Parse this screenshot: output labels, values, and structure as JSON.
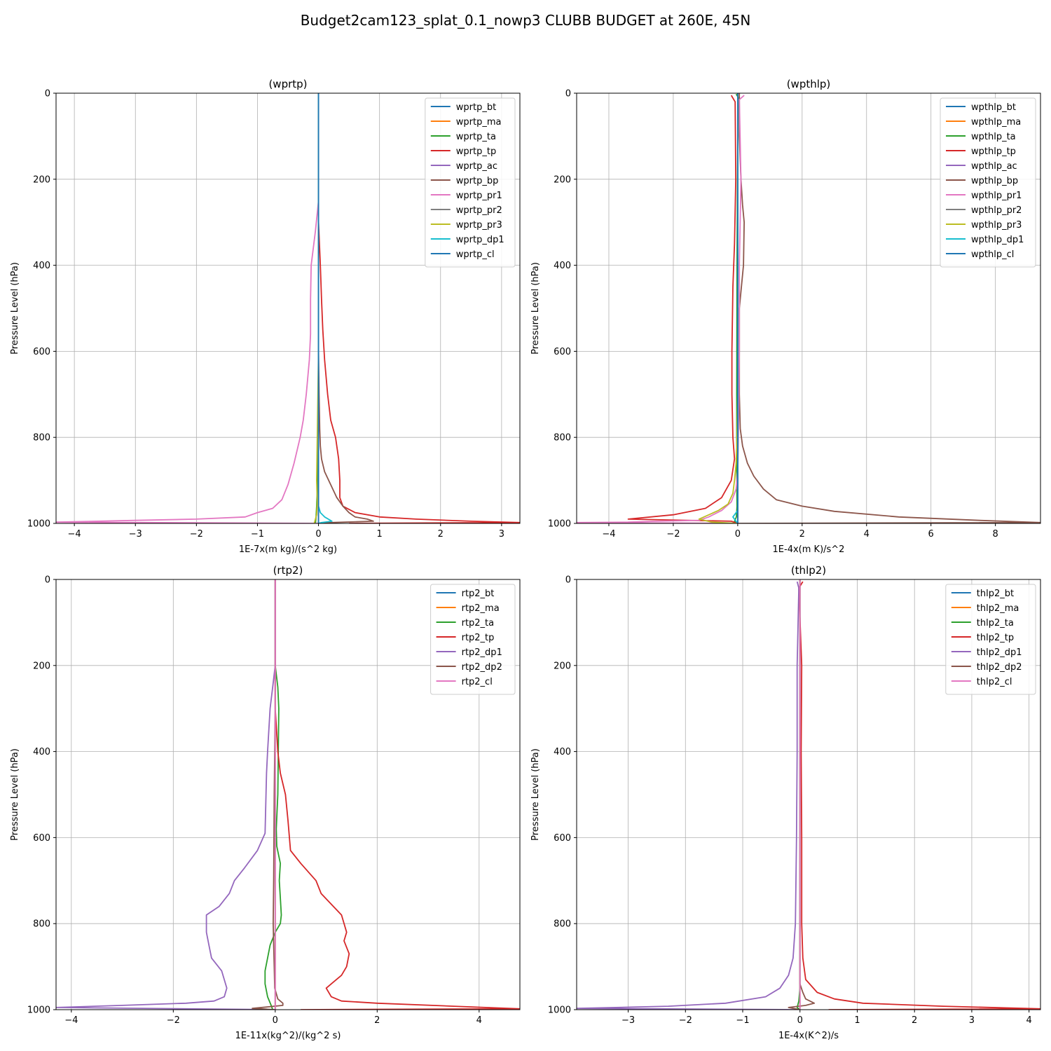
{
  "figure": {
    "title": "Budget2cam123_splat_0.1_nowp3 CLUBB BUDGET at 260E, 45N"
  },
  "colors": [
    "#1f77b4",
    "#ff7f0e",
    "#2ca02c",
    "#d62728",
    "#9467bd",
    "#8c564b",
    "#e377c2",
    "#7f7f7f",
    "#bcbd22",
    "#17becf",
    "#1f77b4"
  ],
  "chart_data": [
    {
      "type": "line",
      "title": "(wprtp)",
      "xlabel": "1E-7x(m kg)/(s^2 kg)",
      "ylabel": "Pressure Level (hPa)",
      "xlim": [
        -4.3,
        3.3
      ],
      "ylim": [
        1000,
        0
      ],
      "xticks": [
        -4,
        -3,
        -2,
        -1,
        0,
        1,
        2,
        3
      ],
      "xtick_labels": [
        "−4",
        "−3",
        "−2",
        "−1",
        "0",
        "1",
        "2",
        "3"
      ],
      "yticks": [
        0,
        200,
        400,
        600,
        800,
        1000
      ],
      "ytick_labels": [
        "0",
        "200",
        "400",
        "600",
        "800",
        "1000"
      ],
      "grid": true,
      "legend": "top-right",
      "series": [
        {
          "name": "wprtp_bt",
          "x": [
            0,
            0
          ],
          "y": [
            0,
            1000
          ]
        },
        {
          "name": "wprtp_ma",
          "x": [
            0,
            0
          ],
          "y": [
            0,
            1000
          ]
        },
        {
          "name": "wprtp_ta",
          "x": [
            0,
            0,
            0,
            -0.01,
            -0.02,
            -0.03,
            -0.04,
            -0.05
          ],
          "y": [
            0,
            400,
            700,
            850,
            920,
            960,
            985,
            1000
          ]
        },
        {
          "name": "wprtp_tp",
          "x": [
            0,
            0,
            0.03,
            0.05,
            0.07,
            0.1,
            0.15,
            0.2,
            0.28,
            0.33,
            0.35,
            0.35,
            0.4,
            0.6,
            1.0,
            1.6,
            2.5,
            3.3,
            0.5
          ],
          "y": [
            0,
            300,
            400,
            480,
            550,
            620,
            700,
            760,
            800,
            850,
            900,
            940,
            960,
            975,
            985,
            990,
            995,
            998,
            1000
          ]
        },
        {
          "name": "wprtp_ac",
          "x": [
            0,
            0
          ],
          "y": [
            0,
            1000
          ]
        },
        {
          "name": "wprtp_bp",
          "x": [
            0,
            0,
            0,
            0.01,
            0.02,
            0.03,
            0.05,
            0.1,
            0.2,
            0.3,
            0.4,
            0.5,
            0.6,
            0.8,
            0.9,
            0.2,
            0
          ],
          "y": [
            0,
            400,
            600,
            700,
            780,
            820,
            850,
            880,
            910,
            940,
            960,
            975,
            985,
            990,
            995,
            998,
            1000
          ]
        },
        {
          "name": "wprtp_pr1",
          "x": [
            0,
            0,
            -0.05,
            -0.12,
            -0.13,
            -0.13,
            -0.15,
            -0.2,
            -0.25,
            -0.3,
            -0.4,
            -0.5,
            -0.6,
            -0.75,
            -1.0,
            -1.2,
            -2.0,
            -3.0,
            -4.3,
            0
          ],
          "y": [
            0,
            250,
            320,
            400,
            480,
            560,
            620,
            700,
            760,
            800,
            860,
            910,
            945,
            965,
            975,
            985,
            990,
            993,
            997,
            1000
          ]
        },
        {
          "name": "wprtp_pr2",
          "x": [
            0,
            0
          ],
          "y": [
            0,
            1000
          ]
        },
        {
          "name": "wprtp_pr3",
          "x": [
            0,
            0,
            -0.02,
            -0.03,
            -0.02,
            -0.03,
            -0.05,
            -0.07
          ],
          "y": [
            0,
            600,
            800,
            900,
            950,
            980,
            990,
            1000
          ]
        },
        {
          "name": "wprtp_dp1",
          "x": [
            0,
            0,
            0,
            0.03,
            0.1,
            0.22,
            0.05,
            0
          ],
          "y": [
            0,
            800,
            960,
            975,
            985,
            995,
            998,
            1000
          ]
        },
        {
          "name": "wprtp_cl",
          "x": [
            0,
            0
          ],
          "y": [
            0,
            1000
          ]
        }
      ]
    },
    {
      "type": "line",
      "title": "(wpthlp)",
      "xlabel": "1E-4x(m K)/s^2",
      "ylabel": "Pressure Level (hPa)",
      "xlim": [
        -5.0,
        9.4
      ],
      "ylim": [
        1000,
        0
      ],
      "xticks": [
        -4,
        -2,
        0,
        2,
        4,
        6,
        8
      ],
      "xtick_labels": [
        "−4",
        "−2",
        "0",
        "2",
        "4",
        "6",
        "8"
      ],
      "yticks": [
        0,
        200,
        400,
        600,
        800,
        1000
      ],
      "ytick_labels": [
        "0",
        "200",
        "400",
        "600",
        "800",
        "1000"
      ],
      "grid": true,
      "legend": "top-right",
      "series": [
        {
          "name": "wpthlp_bt",
          "x": [
            0,
            0
          ],
          "y": [
            0,
            1000
          ]
        },
        {
          "name": "wpthlp_ma",
          "x": [
            0,
            0
          ],
          "y": [
            0,
            1000
          ]
        },
        {
          "name": "wpthlp_ta",
          "x": [
            -0.05,
            0.02,
            0,
            -0.02,
            -0.03,
            -0.03,
            -0.02,
            -0.04,
            -0.1,
            0
          ],
          "y": [
            2,
            10,
            100,
            400,
            700,
            900,
            960,
            985,
            995,
            1000
          ]
        },
        {
          "name": "wpthlp_tp",
          "x": [
            -0.2,
            -0.08,
            -0.06,
            -0.1,
            -0.15,
            -0.18,
            -0.18,
            -0.15,
            -0.1,
            -0.2,
            -0.5,
            -1.0,
            -2.0,
            -3.4,
            -0.2,
            0
          ],
          "y": [
            5,
            20,
            200,
            350,
            450,
            600,
            700,
            800,
            850,
            900,
            940,
            965,
            980,
            990,
            995,
            1000
          ]
        },
        {
          "name": "wpthlp_ac",
          "x": [
            0,
            0
          ],
          "y": [
            0,
            1000
          ]
        },
        {
          "name": "wpthlp_bp",
          "x": [
            0.05,
            0.05,
            0.1,
            0.15,
            0.2,
            0.18,
            0.05,
            0.05,
            0.08,
            0.15,
            0.3,
            0.5,
            0.8,
            1.2,
            2.0,
            3.0,
            5.0,
            7.5,
            9.4,
            0
          ],
          "y": [
            0,
            100,
            200,
            260,
            300,
            400,
            500,
            700,
            780,
            820,
            860,
            890,
            920,
            945,
            960,
            972,
            985,
            993,
            998,
            1000
          ]
        },
        {
          "name": "wpthlp_pr1",
          "x": [
            0.2,
            0.05,
            0.1,
            0.05,
            0.05,
            0.02,
            0,
            -0.05,
            -0.2,
            -0.5,
            -0.9,
            -1.2,
            -2.5,
            -3.4,
            -5.0,
            0
          ],
          "y": [
            5,
            15,
            200,
            400,
            600,
            800,
            880,
            920,
            950,
            970,
            985,
            993,
            995,
            997,
            998,
            1000
          ]
        },
        {
          "name": "wpthlp_pr2",
          "x": [
            0,
            0
          ],
          "y": [
            0,
            1000
          ]
        },
        {
          "name": "wpthlp_pr3",
          "x": [
            0,
            0,
            -0.02,
            -0.05,
            -0.1,
            -0.15,
            -0.3,
            -0.6,
            -1.2,
            -0.8,
            -0.3,
            0
          ],
          "y": [
            0,
            700,
            800,
            860,
            900,
            930,
            955,
            970,
            990,
            997,
            999,
            1000
          ]
        },
        {
          "name": "wpthlp_dp1",
          "x": [
            0,
            0,
            0,
            -0.15,
            -0.05,
            0
          ],
          "y": [
            0,
            900,
            970,
            985,
            995,
            1000
          ]
        },
        {
          "name": "wpthlp_cl",
          "x": [
            0,
            0
          ],
          "y": [
            0,
            1000
          ]
        }
      ]
    },
    {
      "type": "line",
      "title": "(rtp2)",
      "xlabel": "1E-11x(kg^2)/(kg^2 s)",
      "ylabel": "Pressure Level (hPa)",
      "xlim": [
        -4.3,
        4.8
      ],
      "ylim": [
        1000,
        0
      ],
      "xticks": [
        -4,
        -2,
        0,
        2,
        4
      ],
      "xtick_labels": [
        "−4",
        "−2",
        "0",
        "2",
        "4"
      ],
      "yticks": [
        0,
        200,
        400,
        600,
        800,
        1000
      ],
      "ytick_labels": [
        "0",
        "200",
        "400",
        "600",
        "800",
        "1000"
      ],
      "grid": true,
      "legend": "top-right",
      "series": [
        {
          "name": "rtp2_bt",
          "x": [
            0,
            0
          ],
          "y": [
            0,
            1000
          ]
        },
        {
          "name": "rtp2_ma",
          "x": [
            0,
            0
          ],
          "y": [
            0,
            1000
          ]
        },
        {
          "name": "rtp2_ta",
          "x": [
            0,
            0,
            0.05,
            0.07,
            0.06,
            0.05,
            0.02,
            0.03,
            0.1,
            0.08,
            0.1,
            0.12,
            0.1,
            0.0,
            -0.1,
            -0.15,
            -0.2,
            -0.2,
            -0.15,
            -0.08,
            -0.05
          ],
          "y": [
            0,
            200,
            250,
            300,
            400,
            500,
            580,
            620,
            660,
            700,
            740,
            780,
            800,
            820,
            850,
            880,
            910,
            940,
            970,
            990,
            1000
          ]
        },
        {
          "name": "rtp2_tp",
          "x": [
            0,
            0,
            0,
            0.05,
            0.1,
            0.2,
            0.25,
            0.3,
            0.5,
            0.8,
            0.9,
            1.3,
            1.4,
            1.35,
            1.45,
            1.4,
            1.3,
            1.1,
            1.0,
            1.1,
            1.3,
            2.0,
            3.5,
            4.8,
            0.5
          ],
          "y": [
            0,
            200,
            300,
            400,
            450,
            500,
            560,
            630,
            660,
            700,
            730,
            780,
            820,
            840,
            870,
            900,
            920,
            940,
            950,
            970,
            980,
            985,
            992,
            998,
            1000
          ]
        },
        {
          "name": "rtp2_dp1",
          "x": [
            0,
            0,
            -0.05,
            -0.1,
            -0.15,
            -0.17,
            -0.2,
            -0.35,
            -0.6,
            -0.8,
            -0.9,
            -1.1,
            -1.35,
            -1.35,
            -1.3,
            -1.25,
            -1.05,
            -0.95,
            -1.0,
            -1.2,
            -1.75,
            -3.0,
            -4.3,
            0
          ],
          "y": [
            0,
            200,
            250,
            300,
            400,
            450,
            590,
            630,
            670,
            700,
            730,
            760,
            780,
            820,
            850,
            880,
            910,
            950,
            970,
            980,
            985,
            990,
            995,
            1000
          ]
        },
        {
          "name": "rtp2_dp2",
          "x": [
            0,
            0,
            -0.02,
            -0.03,
            -0.04,
            -0.03,
            -0.02,
            -0.01,
            0.05,
            0.15,
            0.15,
            -0.1,
            -0.45,
            0
          ],
          "y": [
            0,
            300,
            500,
            700,
            800,
            850,
            900,
            950,
            975,
            985,
            990,
            993,
            997,
            1000
          ]
        },
        {
          "name": "rtp2_cl",
          "x": [
            0,
            0
          ],
          "y": [
            0,
            1000
          ]
        }
      ]
    },
    {
      "type": "line",
      "title": "(thlp2)",
      "xlabel": "1E-4x(K^2)/s",
      "ylabel": "Pressure Level (hPa)",
      "xlim": [
        -3.9,
        4.2
      ],
      "ylim": [
        1000,
        0
      ],
      "xticks": [
        -3,
        -2,
        -1,
        0,
        1,
        2,
        3,
        4
      ],
      "xtick_labels": [
        "−3",
        "−2",
        "−1",
        "0",
        "1",
        "2",
        "3",
        "4"
      ],
      "yticks": [
        0,
        200,
        400,
        600,
        800,
        1000
      ],
      "ytick_labels": [
        "0",
        "200",
        "400",
        "600",
        "800",
        "1000"
      ],
      "grid": true,
      "legend": "top-right",
      "series": [
        {
          "name": "thlp2_bt",
          "x": [
            0,
            0
          ],
          "y": [
            0,
            1000
          ]
        },
        {
          "name": "thlp2_ma",
          "x": [
            0,
            0
          ],
          "y": [
            0,
            1000
          ]
        },
        {
          "name": "thlp2_ta",
          "x": [
            0,
            0,
            -0.02,
            -0.05,
            0
          ],
          "y": [
            0,
            950,
            980,
            995,
            1000
          ]
        },
        {
          "name": "thlp2_tp",
          "x": [
            0.05,
            -0.02,
            0.03,
            0.02,
            0.03,
            0.03,
            0.05,
            0.1,
            0.3,
            0.6,
            1.1,
            2.5,
            4.2,
            0.5
          ],
          "y": [
            5,
            20,
            200,
            400,
            600,
            800,
            880,
            930,
            960,
            975,
            985,
            992,
            998,
            1000
          ]
        },
        {
          "name": "thlp2_dp1",
          "x": [
            -0.05,
            -0.02,
            -0.05,
            -0.05,
            -0.06,
            -0.08,
            -0.12,
            -0.2,
            -0.35,
            -0.6,
            -1.3,
            -2.3,
            -3.9,
            0
          ],
          "y": [
            5,
            20,
            200,
            400,
            600,
            800,
            880,
            920,
            950,
            970,
            985,
            992,
            997,
            1000
          ]
        },
        {
          "name": "thlp2_dp2",
          "x": [
            0,
            0,
            0,
            0.05,
            0.1,
            0.25,
            0.1,
            -0.2,
            0
          ],
          "y": [
            0,
            800,
            940,
            960,
            975,
            985,
            990,
            995,
            1000
          ]
        },
        {
          "name": "thlp2_cl",
          "x": [
            0,
            0
          ],
          "y": [
            0,
            1000
          ]
        }
      ]
    }
  ]
}
